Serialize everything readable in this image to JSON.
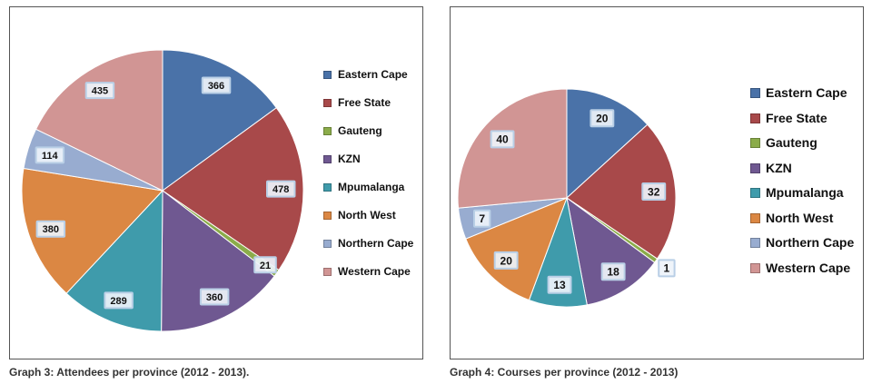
{
  "chart_data": [
    {
      "type": "pie",
      "title": "",
      "caption": "Graph 3: Attendees per province (2012 - 2013).",
      "categories": [
        "Eastern Cape",
        "Free State",
        "Gauteng",
        "KZN",
        "Mpumalanga",
        "North West",
        "Northern Cape",
        "Western Cape"
      ],
      "values": [
        366,
        478,
        21,
        360,
        289,
        380,
        114,
        435
      ],
      "colors": [
        "#4a72a8",
        "#a8494a",
        "#8bac4a",
        "#6f5891",
        "#3f9bab",
        "#db8743",
        "#98acd0",
        "#d19594"
      ],
      "data_labels": [
        "366",
        "478",
        "21",
        "360",
        "289",
        "380",
        "114",
        "435"
      ],
      "legend_position": "right",
      "start_angle": "12 o'clock, clockwise"
    },
    {
      "type": "pie",
      "title": "",
      "caption": "Graph 4: Courses per province (2012 - 2013)",
      "categories": [
        "Eastern Cape",
        "Free State",
        "Gauteng",
        "KZN",
        "Mpumalanga",
        "North West",
        "Northern Cape",
        "Western Cape"
      ],
      "values": [
        20,
        32,
        1,
        18,
        13,
        20,
        7,
        40
      ],
      "colors": [
        "#4a72a8",
        "#a8494a",
        "#8bac4a",
        "#6f5891",
        "#3f9bab",
        "#db8743",
        "#98acd0",
        "#d19594"
      ],
      "data_labels": [
        "20",
        "32",
        "1",
        "18",
        "13",
        "20",
        "7",
        "40"
      ],
      "legend_position": "right",
      "start_angle": "12 o'clock, clockwise"
    }
  ]
}
